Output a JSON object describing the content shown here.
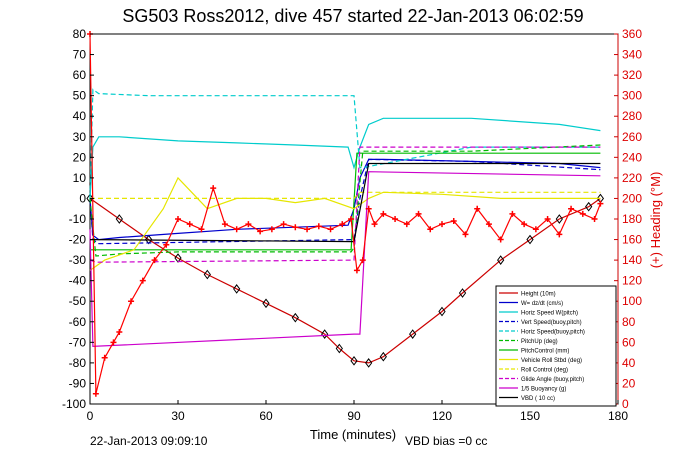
{
  "chart_data": {
    "type": "line",
    "title": "SG503 Ross2012, dive 457 started 22-Jan-2013 06:02:59",
    "xlabel": "Time (minutes)",
    "ylabel_right": "(+) Heading (°M)",
    "footer_left": "22-Jan-2013 09:09:10",
    "footer_right": "VBD bias =0 cc",
    "xlim": [
      0,
      180
    ],
    "ylim": [
      -100,
      80
    ],
    "ylim_right": [
      0,
      360
    ],
    "xticks": [
      0,
      30,
      60,
      90,
      120,
      150,
      180
    ],
    "yticks": [
      80,
      70,
      60,
      50,
      40,
      30,
      20,
      10,
      0,
      -10,
      -20,
      -30,
      -40,
      -50,
      -60,
      -70,
      -80,
      -90,
      -100
    ],
    "yticks_right": [
      360,
      340,
      320,
      300,
      280,
      260,
      240,
      220,
      200,
      180,
      160,
      140,
      120,
      100,
      80,
      60,
      40,
      20,
      0
    ],
    "legend_position": "bottom-right",
    "legend": [
      {
        "label": "Height (10m)",
        "color": "#cc0000",
        "dash": "solid"
      },
      {
        "label": "W= dz/dt (cm/s)",
        "color": "#0000cc",
        "dash": "solid"
      },
      {
        "label": "Horiz Speed W(pitch)",
        "color": "#00cccc",
        "dash": "solid"
      },
      {
        "label": "Vert Speed(buoy,pitch)",
        "color": "#0000cc",
        "dash": "dashed"
      },
      {
        "label": "Horiz Speed(buoy,pitch)",
        "color": "#00cccc",
        "dash": "dashed"
      },
      {
        "label": "PitchUp (deg)",
        "color": "#00bb00",
        "dash": "dashed"
      },
      {
        "label": "PitchControl (mm)",
        "color": "#00bb00",
        "dash": "solid"
      },
      {
        "label": "Vehicle Roll Stbd (deg)",
        "color": "#e6e600",
        "dash": "solid"
      },
      {
        "label": "Roll Control (deg)",
        "color": "#e6e600",
        "dash": "dashed"
      },
      {
        "label": "Glide Angle (buoy,pitch)",
        "color": "#cc00cc",
        "dash": "dashed"
      },
      {
        "label": "1/5 Buoyancy (g)",
        "color": "#cc00cc",
        "dash": "solid"
      },
      {
        "label": "VBD ( 10 cc)",
        "color": "#000000",
        "dash": "solid"
      }
    ],
    "series": [
      {
        "name": "Height (10m)",
        "color": "#cc0000",
        "marker": "diamond",
        "x": [
          0,
          10,
          20,
          30,
          40,
          50,
          60,
          70,
          80,
          85,
          90,
          95,
          100,
          110,
          120,
          127,
          140,
          150,
          160,
          170,
          174
        ],
        "y": [
          0,
          -10,
          -20,
          -29,
          -37,
          -44,
          -51,
          -58,
          -66,
          -73,
          -79,
          -80,
          -77,
          -66,
          -55,
          -46,
          -30,
          -20,
          -10,
          -4,
          0
        ]
      },
      {
        "name": "W= dz/dt (cm/s)",
        "color": "#0000cc",
        "x": [
          0,
          1,
          3,
          10,
          30,
          50,
          70,
          88,
          90,
          92,
          95,
          100,
          130,
          160,
          174
        ],
        "y": [
          0,
          -18,
          -20,
          -19,
          -17,
          -15,
          -14,
          -13,
          -5,
          10,
          19,
          19,
          18,
          17,
          15
        ]
      },
      {
        "name": "Horiz Speed W(pitch)",
        "color": "#00cccc",
        "x": [
          0,
          1,
          3,
          10,
          30,
          50,
          70,
          88,
          90,
          92,
          95,
          100,
          130,
          160,
          174
        ],
        "y": [
          0,
          25,
          30,
          30,
          28,
          27,
          26,
          25,
          15,
          25,
          36,
          39,
          39,
          36,
          33
        ]
      },
      {
        "name": "Vert Speed(buoy,pitch)",
        "color": "#0000cc",
        "dash": "dashed",
        "x": [
          0,
          1,
          3,
          90,
          92,
          95,
          130,
          174
        ],
        "y": [
          0,
          -20,
          -22,
          -20,
          0,
          19,
          18,
          14
        ]
      },
      {
        "name": "Horiz Speed(buoy,pitch)",
        "color": "#00cccc",
        "dash": "dashed",
        "x": [
          0,
          1,
          3,
          20,
          50,
          90,
          92,
          93,
          130,
          174
        ],
        "y": [
          0,
          53,
          51,
          50,
          50,
          50,
          15,
          15,
          25,
          25
        ]
      },
      {
        "name": "PitchUp (deg)",
        "color": "#00bb00",
        "dash": "dashed",
        "x": [
          0,
          2,
          10,
          30,
          89,
          90,
          93,
          130,
          174
        ],
        "y": [
          0,
          -28,
          -27,
          -26,
          -26,
          -24,
          23,
          23,
          26
        ]
      },
      {
        "name": "PitchControl (mm)",
        "color": "#00bb00",
        "x": [
          0,
          2,
          89,
          91,
          174
        ],
        "y": [
          -25,
          -25,
          -25,
          22,
          22
        ]
      },
      {
        "name": "Vehicle Roll Stbd (deg)",
        "color": "#e6e600",
        "x": [
          0,
          5,
          15,
          25,
          30,
          40,
          50,
          60,
          70,
          80,
          90,
          95,
          100,
          120,
          140,
          160,
          174
        ],
        "y": [
          -35,
          -30,
          -25,
          -5,
          10,
          -5,
          0,
          0,
          -2,
          0,
          -5,
          0,
          3,
          2,
          0,
          0,
          0
        ]
      },
      {
        "name": "Roll Control (deg)",
        "color": "#e6e600",
        "dash": "dashed",
        "x": [
          0,
          40,
          90,
          92,
          174
        ],
        "y": [
          0,
          0,
          0,
          3,
          3
        ]
      },
      {
        "name": "Glide Angle (buoy,pitch)",
        "color": "#cc00cc",
        "dash": "dashed",
        "x": [
          0,
          2,
          90,
          92,
          174
        ],
        "y": [
          -30,
          -31,
          -30,
          25,
          25
        ]
      },
      {
        "name": "1/5 Buoyancy (g)",
        "color": "#cc00cc",
        "x": [
          0,
          1,
          90,
          92,
          95,
          174
        ],
        "y": [
          -15,
          -72,
          -66,
          -66,
          13,
          11
        ]
      },
      {
        "name": "VBD ( 10 cc)",
        "color": "#000000",
        "x": [
          0,
          1,
          90,
          95,
          174
        ],
        "y": [
          -20,
          -20,
          -21,
          17,
          17
        ]
      },
      {
        "name": "Heading (°M)",
        "color": "#ff0000",
        "marker": "plus",
        "axis": "right",
        "x": [
          0,
          2,
          5,
          8,
          10,
          14,
          18,
          22,
          26,
          30,
          34,
          38,
          42,
          46,
          50,
          54,
          58,
          62,
          66,
          70,
          74,
          78,
          82,
          86,
          89,
          91,
          93,
          95,
          97,
          100,
          104,
          108,
          112,
          116,
          120,
          124,
          128,
          132,
          136,
          140,
          144,
          148,
          152,
          156,
          160,
          164,
          168,
          172,
          174
        ],
        "y": [
          370,
          10,
          45,
          60,
          70,
          100,
          120,
          140,
          155,
          180,
          175,
          170,
          210,
          175,
          170,
          175,
          168,
          170,
          175,
          172,
          170,
          173,
          170,
          175,
          180,
          130,
          140,
          190,
          175,
          185,
          180,
          175,
          185,
          170,
          175,
          178,
          165,
          190,
          175,
          160,
          185,
          175,
          170,
          180,
          165,
          190,
          185,
          180,
          195
        ]
      }
    ]
  }
}
